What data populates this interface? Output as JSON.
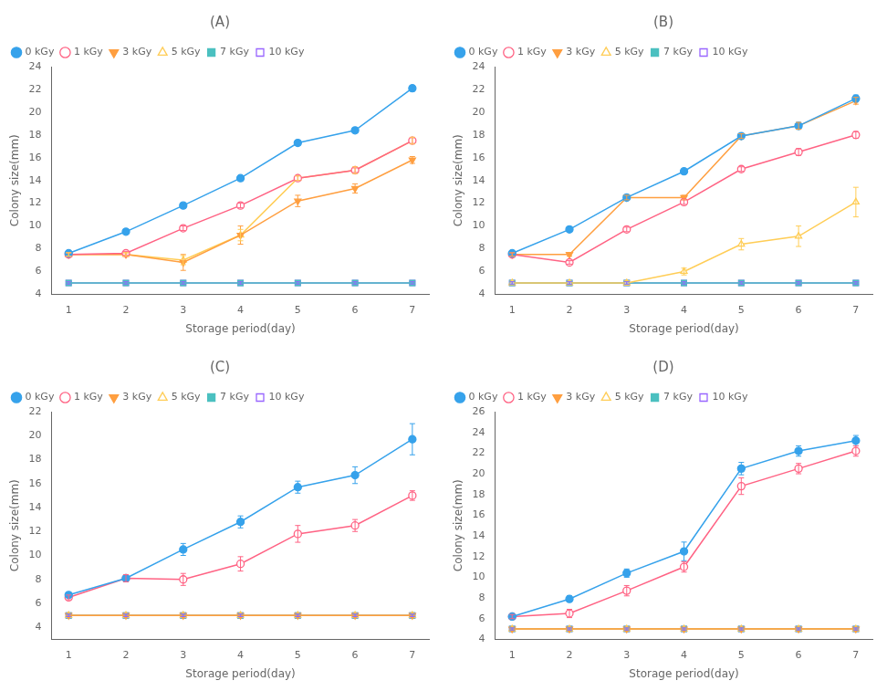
{
  "chart_data": [
    {
      "type": "line",
      "title": "(A)",
      "xlabel": "Storage period(day)",
      "ylabel": "Colony size(mm)",
      "x": [
        1,
        2,
        3,
        4,
        5,
        6,
        7
      ],
      "xlim": [
        0.7,
        7.3
      ],
      "xticks": [
        1,
        2,
        3,
        4,
        5,
        6,
        7
      ],
      "ylim": [
        4,
        24
      ],
      "yticks": [
        4,
        6,
        8,
        10,
        12,
        14,
        16,
        18,
        20,
        22,
        24
      ],
      "grid": false,
      "legend": "upper left",
      "series": [
        {
          "name": "0 kGy",
          "marker": "filled circle",
          "values": [
            7.6,
            9.5,
            11.8,
            14.2,
            17.3,
            18.4,
            22.1
          ],
          "errors": [
            0.15,
            0.15,
            0.2,
            0.2,
            0.2,
            0.2,
            0.25
          ]
        },
        {
          "name": "1 kGy",
          "marker": "open circle",
          "values": [
            7.5,
            7.6,
            9.8,
            11.8,
            14.2,
            14.9,
            17.5
          ],
          "errors": [
            0.15,
            0.15,
            0.2,
            0.2,
            0.2,
            0.2,
            0.25
          ]
        },
        {
          "name": "3 kGy",
          "marker": "filled triangle down",
          "values": [
            7.5,
            7.5,
            6.8,
            9.2,
            12.2,
            13.3,
            15.8
          ],
          "errors": [
            0.15,
            0.15,
            0.7,
            0.8,
            0.5,
            0.4,
            0.3
          ]
        },
        {
          "name": "5 kGy",
          "marker": "open triangle up",
          "values": [
            7.5,
            7.5,
            7.0,
            9.2,
            14.2,
            14.9,
            17.5
          ],
          "errors": [
            0.15,
            0.15,
            0.4,
            0.5,
            0.2,
            0.3,
            0.3
          ]
        },
        {
          "name": "7 kGy",
          "marker": "filled square",
          "values": [
            5.0,
            5.0,
            5.0,
            5.0,
            5.0,
            5.0,
            5.0
          ],
          "errors": [
            0.1,
            0.1,
            0.1,
            0.1,
            0.1,
            0.1,
            0.1
          ]
        },
        {
          "name": "10 kGy",
          "marker": "open square",
          "values": [
            5.0,
            5.0,
            5.0,
            5.0,
            5.0,
            5.0,
            5.0
          ],
          "errors": [
            0.1,
            0.1,
            0.1,
            0.1,
            0.1,
            0.1,
            0.1
          ]
        }
      ]
    },
    {
      "type": "line",
      "title": "(B)",
      "xlabel": "Storage period(day)",
      "ylabel": "Colony size(mm)",
      "x": [
        1,
        2,
        3,
        4,
        5,
        6,
        7
      ],
      "xlim": [
        0.7,
        7.3
      ],
      "xticks": [
        1,
        2,
        3,
        4,
        5,
        6,
        7
      ],
      "ylim": [
        4,
        24
      ],
      "yticks": [
        4,
        6,
        8,
        10,
        12,
        14,
        16,
        18,
        20,
        22,
        24
      ],
      "grid": false,
      "legend": "upper left",
      "series": [
        {
          "name": "0 kGy",
          "marker": "filled circle",
          "values": [
            7.6,
            9.7,
            12.5,
            14.8,
            17.9,
            18.8,
            21.2
          ],
          "errors": [
            0.15,
            0.15,
            0.2,
            0.2,
            0.2,
            0.3,
            0.3
          ]
        },
        {
          "name": "1 kGy",
          "marker": "open circle",
          "values": [
            7.5,
            6.8,
            9.7,
            12.1,
            15.0,
            16.5,
            18.0
          ],
          "errors": [
            0.15,
            0.15,
            0.2,
            0.2,
            0.2,
            0.3,
            0.3
          ]
        },
        {
          "name": "3 kGy",
          "marker": "filled triangle down",
          "values": [
            7.5,
            7.5,
            12.5,
            12.5,
            17.9,
            18.8,
            21.0
          ],
          "errors": [
            0.15,
            0.15,
            0.2,
            0.2,
            0.2,
            0.3,
            0.3
          ]
        },
        {
          "name": "5 kGy",
          "marker": "open triangle up",
          "values": [
            5.0,
            5.0,
            5.0,
            6.0,
            8.4,
            9.1,
            12.1
          ],
          "errors": [
            0.15,
            0.15,
            0.2,
            0.3,
            0.5,
            0.9,
            1.3
          ]
        },
        {
          "name": "7 kGy",
          "marker": "filled square",
          "values": [
            5.0,
            5.0,
            5.0,
            5.0,
            5.0,
            5.0,
            5.0
          ],
          "errors": [
            0.1,
            0.1,
            0.1,
            0.1,
            0.1,
            0.1,
            0.1
          ]
        },
        {
          "name": "10 kGy",
          "marker": "open square",
          "values": [
            5.0,
            5.0,
            5.0,
            5.0,
            5.0,
            5.0,
            5.0
          ],
          "errors": [
            0.1,
            0.1,
            0.1,
            0.1,
            0.1,
            0.1,
            0.1
          ]
        }
      ]
    },
    {
      "type": "line",
      "title": "(C)",
      "xlabel": "Storage period(day)",
      "ylabel": "Colony size(mm)",
      "x": [
        1,
        2,
        3,
        4,
        5,
        6,
        7
      ],
      "xlim": [
        0.7,
        7.3
      ],
      "xticks": [
        1,
        2,
        3,
        4,
        5,
        6,
        7
      ],
      "ylim": [
        3,
        22
      ],
      "yticks": [
        4,
        6,
        8,
        10,
        12,
        14,
        16,
        18,
        20,
        22
      ],
      "grid": false,
      "legend": "upper left",
      "series": [
        {
          "name": "0 kGy",
          "marker": "filled circle",
          "values": [
            6.7,
            8.1,
            10.5,
            12.8,
            15.7,
            16.7,
            19.7
          ],
          "errors": [
            0.2,
            0.3,
            0.5,
            0.5,
            0.5,
            0.7,
            1.3
          ]
        },
        {
          "name": "1 kGy",
          "marker": "open circle",
          "values": [
            6.5,
            8.1,
            8.0,
            9.3,
            11.8,
            12.5,
            15.0
          ],
          "errors": [
            0.2,
            0.3,
            0.5,
            0.6,
            0.7,
            0.5,
            0.4
          ]
        },
        {
          "name": "3 kGy",
          "marker": "filled triangle down",
          "values": [
            5.0,
            5.0,
            5.0,
            5.0,
            5.0,
            5.0,
            5.0
          ],
          "errors": [
            0.1,
            0.1,
            0.1,
            0.1,
            0.1,
            0.1,
            0.1
          ]
        },
        {
          "name": "5 kGy",
          "marker": "open triangle up",
          "values": [
            5.0,
            5.0,
            5.0,
            5.0,
            5.0,
            5.0,
            5.0
          ],
          "errors": [
            0.1,
            0.1,
            0.1,
            0.1,
            0.1,
            0.1,
            0.1
          ]
        },
        {
          "name": "7 kGy",
          "marker": "filled square",
          "values": [
            5.0,
            5.0,
            5.0,
            5.0,
            5.0,
            5.0,
            5.0
          ],
          "errors": [
            0.1,
            0.1,
            0.1,
            0.1,
            0.1,
            0.1,
            0.1
          ]
        },
        {
          "name": "10 kGy",
          "marker": "open square",
          "values": [
            5.0,
            5.0,
            5.0,
            5.0,
            5.0,
            5.0,
            5.0
          ],
          "errors": [
            0.1,
            0.1,
            0.1,
            0.1,
            0.1,
            0.1,
            0.1
          ]
        }
      ]
    },
    {
      "type": "line",
      "title": "(D)",
      "xlabel": "Storage period(day)",
      "ylabel": "Colony size(mm)",
      "x": [
        1,
        2,
        3,
        4,
        5,
        6,
        7
      ],
      "xlim": [
        0.7,
        7.3
      ],
      "xticks": [
        1,
        2,
        3,
        4,
        5,
        6,
        7
      ],
      "ylim": [
        4,
        26
      ],
      "yticks": [
        4,
        6,
        8,
        10,
        12,
        14,
        16,
        18,
        20,
        22,
        24,
        26
      ],
      "grid": false,
      "legend": "upper left",
      "series": [
        {
          "name": "0 kGy",
          "marker": "filled circle",
          "values": [
            6.2,
            7.9,
            10.4,
            12.5,
            20.5,
            22.2,
            23.2
          ],
          "errors": [
            0.2,
            0.3,
            0.4,
            0.9,
            0.6,
            0.5,
            0.5
          ]
        },
        {
          "name": "1 kGy",
          "marker": "open circle",
          "values": [
            6.2,
            6.5,
            8.7,
            11.0,
            18.8,
            20.5,
            22.2
          ],
          "errors": [
            0.2,
            0.4,
            0.5,
            0.5,
            0.8,
            0.5,
            0.5
          ]
        },
        {
          "name": "3 kGy",
          "marker": "filled triangle down",
          "values": [
            5.0,
            5.0,
            5.0,
            5.0,
            5.0,
            5.0,
            5.0
          ],
          "errors": [
            0.1,
            0.1,
            0.1,
            0.1,
            0.1,
            0.1,
            0.1
          ]
        },
        {
          "name": "5 kGy",
          "marker": "open triangle up",
          "values": [
            5.0,
            5.0,
            5.0,
            5.0,
            5.0,
            5.0,
            5.0
          ],
          "errors": [
            0.1,
            0.1,
            0.1,
            0.1,
            0.1,
            0.1,
            0.1
          ]
        },
        {
          "name": "7 kGy",
          "marker": "filled square",
          "values": [
            5.0,
            5.0,
            5.0,
            5.0,
            5.0,
            5.0,
            5.0
          ],
          "errors": [
            0.1,
            0.1,
            0.1,
            0.1,
            0.1,
            0.1,
            0.1
          ]
        },
        {
          "name": "10 kGy",
          "marker": "open square",
          "values": [
            5.0,
            5.0,
            5.0,
            5.0,
            5.0,
            5.0,
            5.0
          ],
          "errors": [
            0.1,
            0.1,
            0.1,
            0.1,
            0.1,
            0.1,
            0.1
          ]
        }
      ]
    }
  ]
}
